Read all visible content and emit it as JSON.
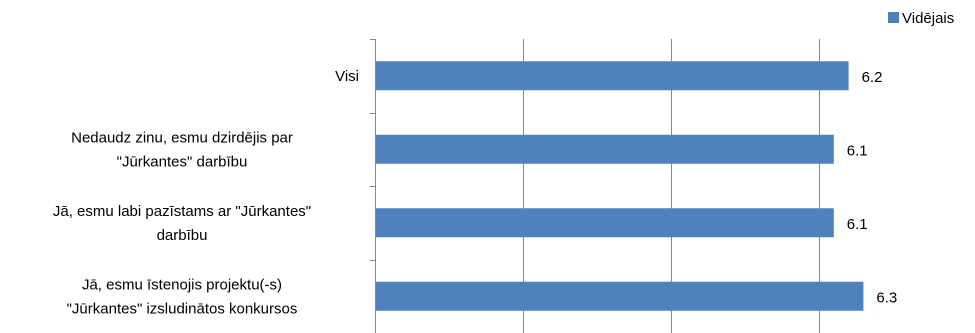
{
  "chart_data": {
    "type": "bar",
    "orientation": "horizontal",
    "categories": [
      "Visi",
      "Nedaudz zinu, esmu dzirdējis par \"Jūrkantes\" darbību",
      "Jā, esmu labi pazīstams ar \"Jūrkantes\" darbību",
      "Jā, esmu īstenojis projektu(-s) \"Jūrkantes\" izsludinātos konkursos"
    ],
    "category_lines": [
      [
        "Visi"
      ],
      [
        "Nedaudz zinu, esmu dzirdējis par",
        "\"Jūrkantes\" darbību"
      ],
      [
        "Jā, esmu labi pazīstams ar \"Jūrkantes\"",
        "darbību"
      ],
      [
        "Jā, esmu īstenojis projektu(-s)",
        "\"Jūrkantes\" izsludinātos konkursos"
      ]
    ],
    "series": [
      {
        "name": "Vidējais",
        "values": [
          6.2,
          6.1,
          6.1,
          6.3
        ],
        "color": "#4F81BD"
      }
    ],
    "data_labels": [
      "6.2",
      "6.1",
      "6.1",
      "6.3"
    ],
    "xlim": [
      3,
      6.5
    ],
    "x_gridlines": [
      4,
      5,
      6
    ],
    "grid": true,
    "show_x_tick_labels": false,
    "legend_position": "top-right",
    "axis_color": "#868686",
    "grid_color": "#868686"
  }
}
